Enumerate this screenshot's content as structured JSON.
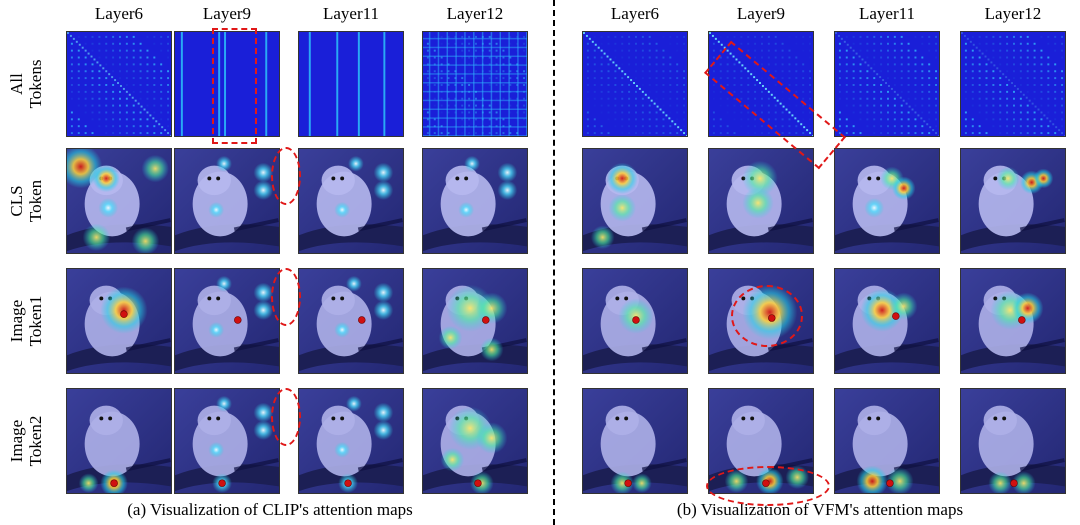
{
  "column_headers": [
    "Layer6",
    "Layer9",
    "Layer11",
    "Layer12"
  ],
  "row_labels": [
    [
      "All",
      "Tokens"
    ],
    [
      "CLS",
      "Token"
    ],
    [
      "Image",
      "Token1"
    ],
    [
      "Image",
      "Token2"
    ]
  ],
  "panel_a": {
    "caption": "(a) Visualization of CLIP's attention maps"
  },
  "panel_b": {
    "caption": "(b) Visualization of VFM's attention maps"
  },
  "colors": {
    "attention_low": "#1a1fd8",
    "attention_mid": "#22d3e6",
    "attention_high": "#e0281c",
    "highlight": "#e01818",
    "query_point": "#d01010"
  }
}
